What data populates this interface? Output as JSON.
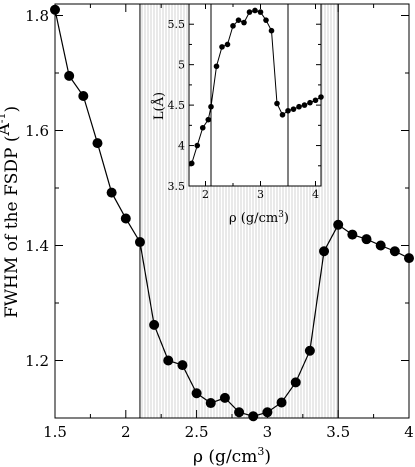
{
  "chart_data": [
    {
      "type": "line",
      "title": "",
      "xlabel": "ρ (g/cm",
      "xlabel_sup": "3",
      "xlabel_end": ")",
      "ylabel": "FWHM of the FSDP (",
      "ylabel_unit": "Å",
      "ylabel_sup": "-1",
      "ylabel_end": ")",
      "xlim": [
        1.5,
        4.0
      ],
      "ylim": [
        1.1,
        1.82
      ],
      "xticks": [
        1.5,
        2,
        2.5,
        3,
        3.5,
        4
      ],
      "xtick_labels": [
        "1.5",
        "2",
        "2.5",
        "3",
        "3.5",
        "4"
      ],
      "yticks": [
        1.2,
        1.4,
        1.6,
        1.8
      ],
      "ytick_labels": [
        "1.2",
        "1.4",
        "1.6",
        "1.8"
      ],
      "shaded_region": [
        2.1,
        3.5
      ],
      "vlines": [
        2.1,
        3.5
      ],
      "grid": false,
      "series": [
        {
          "x": [
            1.5,
            1.6,
            1.7,
            1.8,
            1.9,
            2.0,
            2.1,
            2.2,
            2.3,
            2.4,
            2.5,
            2.6,
            2.7,
            2.8,
            2.9,
            3.0,
            3.1,
            3.2,
            3.3,
            3.4,
            3.5,
            3.6,
            3.7,
            3.8,
            3.9,
            4.0
          ],
          "values": [
            1.81,
            1.695,
            1.66,
            1.578,
            1.492,
            1.447,
            1.406,
            1.262,
            1.2,
            1.192,
            1.143,
            1.126,
            1.135,
            1.11,
            1.103,
            1.11,
            1.127,
            1.162,
            1.217,
            1.39,
            1.436,
            1.419,
            1.411,
            1.4,
            1.39,
            1.378
          ]
        }
      ]
    },
    {
      "type": "line",
      "title": "",
      "xlabel": "ρ (g/cm",
      "xlabel_sup": "3",
      "xlabel_end": ")",
      "ylabel": "L(Å)",
      "xlim": [
        1.7,
        4.1
      ],
      "ylim": [
        3.5,
        5.75
      ],
      "xticks": [
        2,
        3,
        4
      ],
      "xtick_labels": [
        "2",
        "3",
        "4"
      ],
      "yticks": [
        3.5,
        4,
        4.5,
        5,
        5.5
      ],
      "ytick_labels": [
        "3.5",
        "4",
        "4.5",
        "5",
        "5.5"
      ],
      "vlines": [
        2.1,
        3.5
      ],
      "grid": false,
      "series": [
        {
          "x": [
            1.75,
            1.85,
            1.95,
            2.05,
            2.1,
            2.2,
            2.3,
            2.4,
            2.5,
            2.6,
            2.7,
            2.8,
            2.9,
            3.0,
            3.1,
            3.2,
            3.3,
            3.4,
            3.5,
            3.6,
            3.7,
            3.8,
            3.9,
            4.0,
            4.1
          ],
          "values": [
            3.78,
            4.0,
            4.22,
            4.32,
            4.48,
            4.98,
            5.22,
            5.25,
            5.48,
            5.55,
            5.52,
            5.65,
            5.67,
            5.65,
            5.55,
            5.42,
            4.52,
            4.38,
            4.43,
            4.45,
            4.48,
            4.5,
            4.53,
            4.56,
            4.6
          ]
        }
      ]
    }
  ]
}
